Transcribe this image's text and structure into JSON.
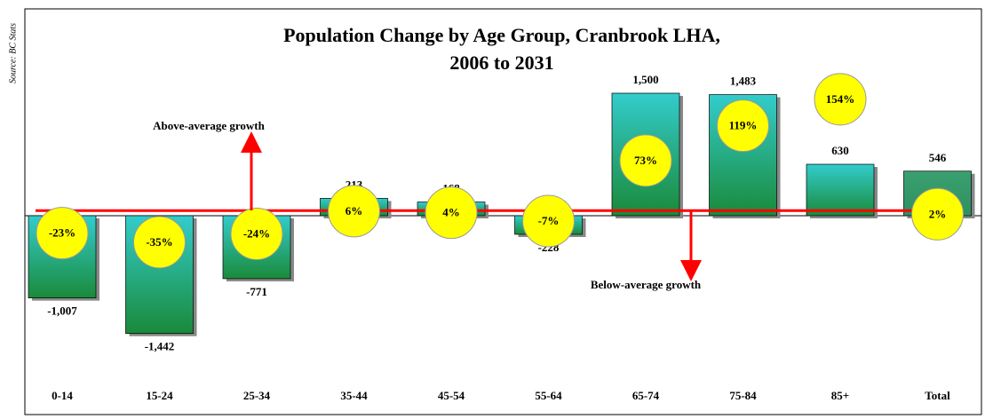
{
  "chart_data": {
    "type": "bar",
    "title": [
      "Population Change by Age Group, Cranbrook LHA,",
      "2006 to 2031"
    ],
    "source": "Source: BC Stats",
    "categories": [
      "0-14",
      "15-24",
      "25-34",
      "35-44",
      "45-54",
      "55-64",
      "65-74",
      "75-84",
      "85+",
      "Total"
    ],
    "series": [
      {
        "values": [
          -1007,
          -1442,
          -771,
          213,
          168,
          -228,
          1500,
          1483,
          630,
          546
        ],
        "value_labels": [
          "-1,007",
          "-1,442",
          "-771",
          "213",
          "168",
          "-228",
          "1,500",
          "1,483",
          "630",
          "546"
        ],
        "colors": [
          "#33cccc",
          "#33cccc",
          "#33cccc",
          "#33cccc",
          "#33cccc",
          "#33cccc",
          "#33cccc",
          "#33cccc",
          "#33cccc",
          "#339966"
        ]
      },
      {
        "axis": "y2",
        "color": "#ffff00",
        "values": [
          -23,
          -35,
          -24,
          6,
          4,
          -7,
          73,
          119,
          154,
          2
        ],
        "value_labels": [
          "-23%",
          "-35%",
          "-24%",
          "6%",
          "4%",
          "-7%",
          "73%",
          "119%",
          "154%",
          "2%"
        ]
      }
    ],
    "ylim": [
      -1500,
      1500
    ],
    "y2lim": [
      -162,
      162
    ],
    "annotations": [
      "Above-average growth",
      "Below-average growth"
    ]
  }
}
